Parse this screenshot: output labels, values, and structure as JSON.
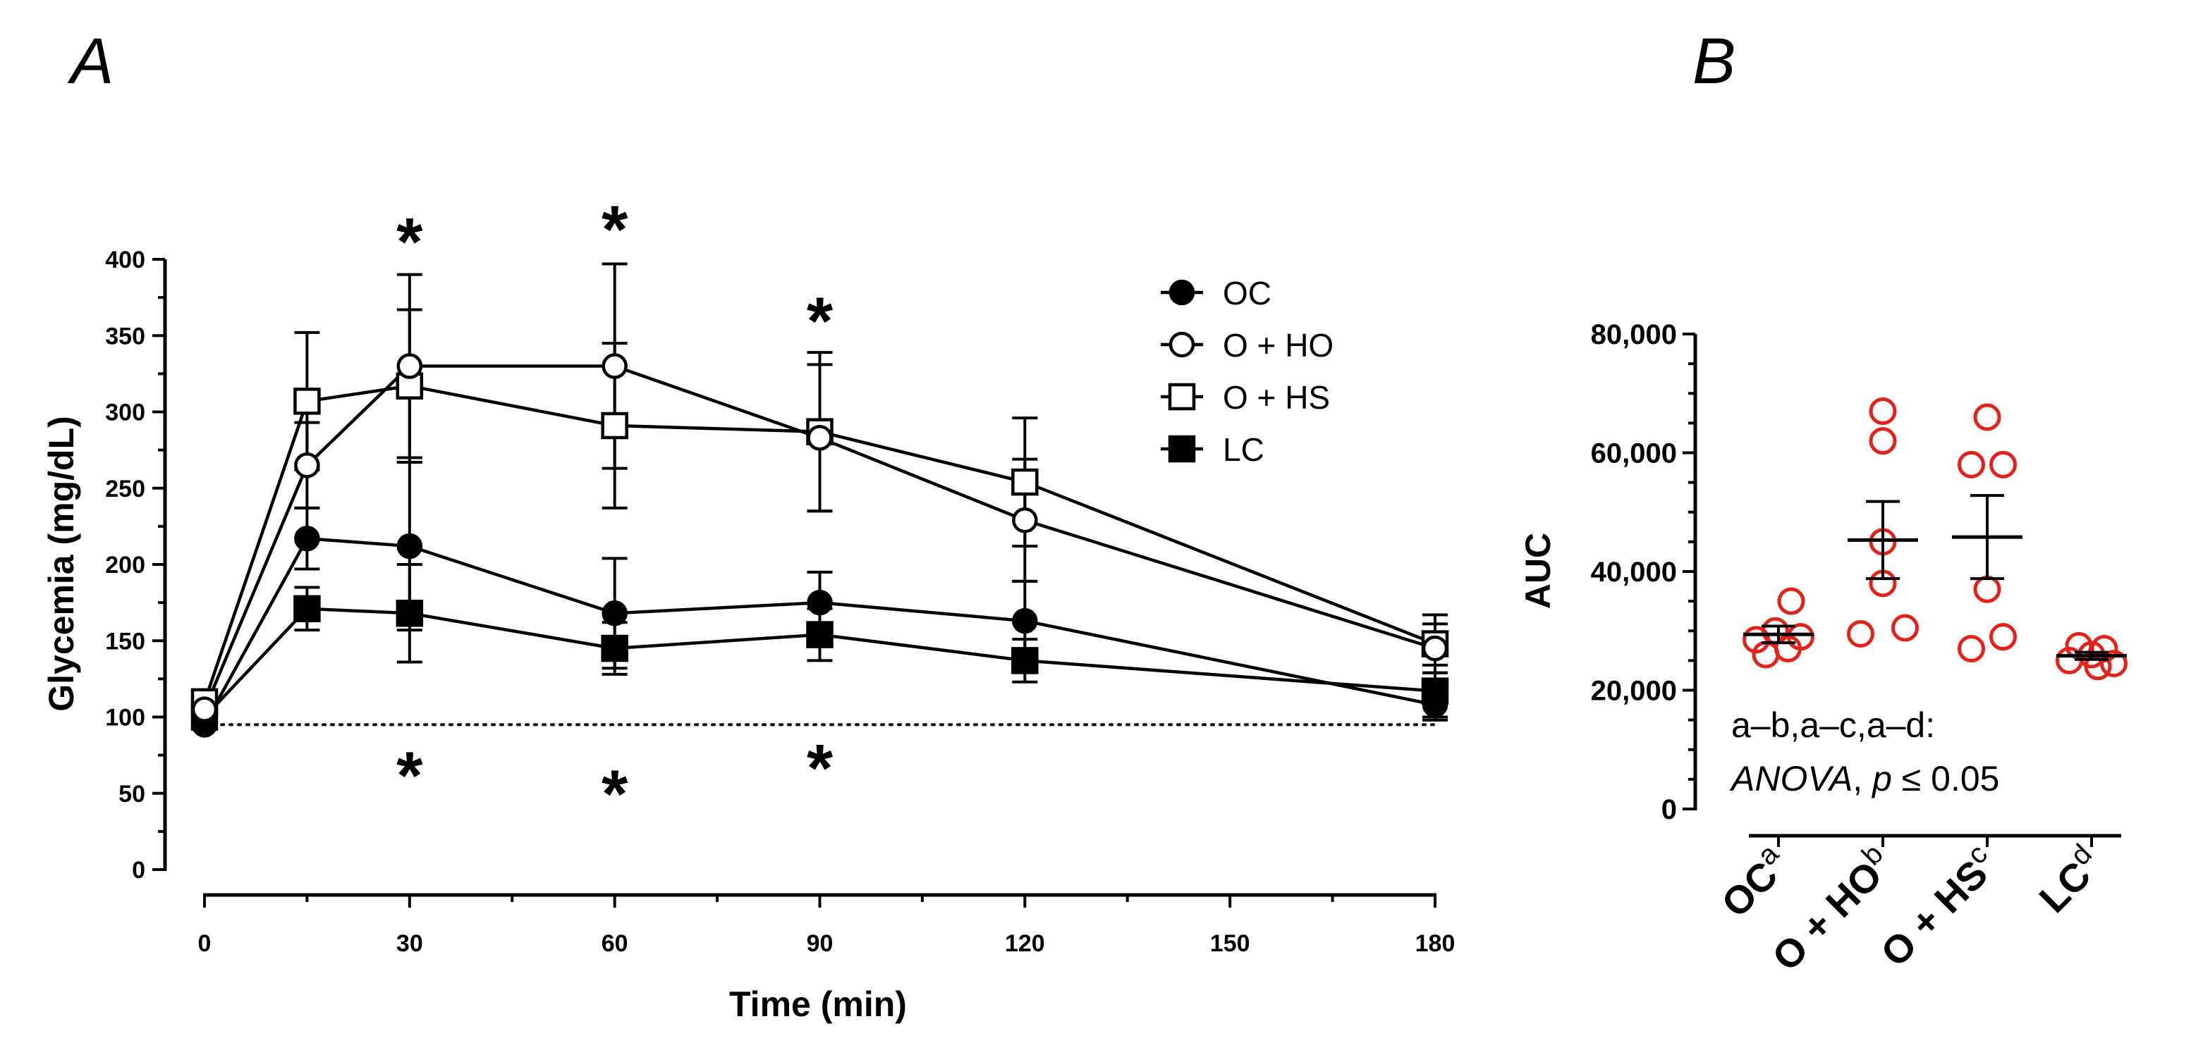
{
  "chart_data": [
    {
      "panel": "A",
      "type": "line",
      "xlabel": "Time (min)",
      "ylabel": "Glycemia (mg/dL)",
      "xlim": [
        0,
        180
      ],
      "ylim": [
        0,
        400
      ],
      "xticks": [
        0,
        30,
        60,
        90,
        120,
        150,
        180
      ],
      "xtick_labels": [
        "0",
        "30",
        "60",
        "90",
        "120",
        "150",
        "180"
      ],
      "yticks": [
        0,
        50,
        100,
        150,
        200,
        250,
        300,
        350,
        400
      ],
      "ytick_labels": [
        "0",
        "50",
        "100",
        "150",
        "200",
        "250",
        "300",
        "350",
        "400"
      ],
      "baseline": 95,
      "x": [
        0,
        15,
        30,
        60,
        90,
        120,
        180
      ],
      "series": [
        {
          "name": "OC",
          "marker": "circle",
          "filled": true,
          "values": [
            95,
            217,
            212,
            168,
            175,
            163,
            108
          ],
          "sem": [
            3,
            20,
            55,
            36,
            20,
            26,
            10
          ]
        },
        {
          "name": "O + HO",
          "marker": "circle",
          "filled": false,
          "values": [
            105,
            265,
            330,
            330,
            283,
            229,
            145
          ],
          "sem": [
            4,
            28,
            60,
            67,
            48,
            40,
            16
          ]
        },
        {
          "name": "O + HS",
          "marker": "square",
          "filled": false,
          "values": [
            110,
            307,
            317,
            291,
            287,
            254,
            148
          ],
          "sem": [
            4,
            45,
            50,
            54,
            52,
            42,
            19
          ]
        },
        {
          "name": "LC",
          "marker": "square",
          "filled": true,
          "values": [
            100,
            171,
            168,
            145,
            154,
            137,
            117
          ],
          "sem": [
            3,
            14,
            32,
            17,
            17,
            14,
            17
          ]
        }
      ],
      "annotations": [
        {
          "x": 30,
          "y": 425,
          "text": "*"
        },
        {
          "x": 60,
          "y": 433,
          "text": "*"
        },
        {
          "x": 90,
          "y": 373,
          "text": "*"
        },
        {
          "x": 30,
          "y": 75,
          "text": "*"
        },
        {
          "x": 60,
          "y": 63,
          "text": "*"
        },
        {
          "x": 90,
          "y": 80,
          "text": "*"
        }
      ]
    },
    {
      "panel": "B",
      "type": "scatter",
      "ylabel": "AUC",
      "ylim": [
        0,
        80000
      ],
      "yticks": [
        0,
        20000,
        40000,
        60000,
        80000
      ],
      "ytick_labels": [
        "0",
        "20,000",
        "40,000",
        "60,000",
        "80,000"
      ],
      "categories": [
        {
          "label": "OC",
          "sup": "a"
        },
        {
          "label": "O + HO",
          "sup": "b"
        },
        {
          "label": "O + HS",
          "sup": "c"
        },
        {
          "label": "LC",
          "sup": "d"
        }
      ],
      "groups": [
        {
          "points": [
            {
              "v": 35000,
              "off": 0.2
            },
            {
              "v": 30000,
              "off": -0.05
            },
            {
              "v": 29000,
              "off": 0.35
            },
            {
              "v": 28500,
              "off": -0.35
            },
            {
              "v": 26000,
              "off": -0.2
            },
            {
              "v": 27000,
              "off": 0.15
            }
          ],
          "mean": 29400,
          "sem": 1400
        },
        {
          "points": [
            {
              "v": 67000,
              "off": 0
            },
            {
              "v": 62000,
              "off": 0
            },
            {
              "v": 45000,
              "off": 0
            },
            {
              "v": 38000,
              "off": 0
            },
            {
              "v": 29500,
              "off": -0.35
            },
            {
              "v": 30500,
              "off": 0.35
            }
          ],
          "mean": 45300,
          "sem": 6500
        },
        {
          "points": [
            {
              "v": 66000,
              "off": 0
            },
            {
              "v": 58000,
              "off": -0.25
            },
            {
              "v": 58000,
              "off": 0.25
            },
            {
              "v": 37000,
              "off": 0
            },
            {
              "v": 29000,
              "off": 0.25
            },
            {
              "v": 27000,
              "off": -0.25
            }
          ],
          "mean": 45800,
          "sem": 7000
        },
        {
          "points": [
            {
              "v": 27500,
              "off": -0.2
            },
            {
              "v": 27000,
              "off": 0.2
            },
            {
              "v": 26000,
              "off": 0
            },
            {
              "v": 25000,
              "off": -0.35
            },
            {
              "v": 24500,
              "off": 0.35
            },
            {
              "v": 24000,
              "off": 0.1
            }
          ],
          "mean": 25800,
          "sem": 600
        }
      ],
      "point_color": "#e32219",
      "note_line1": "a–b,a–c,a–d:",
      "note_italic1": "ANOVA",
      "note_mid": ", ",
      "note_italic2": "p",
      "note_rest": " ≤ 0.05"
    }
  ],
  "panel_labels": [
    "A",
    "B"
  ]
}
